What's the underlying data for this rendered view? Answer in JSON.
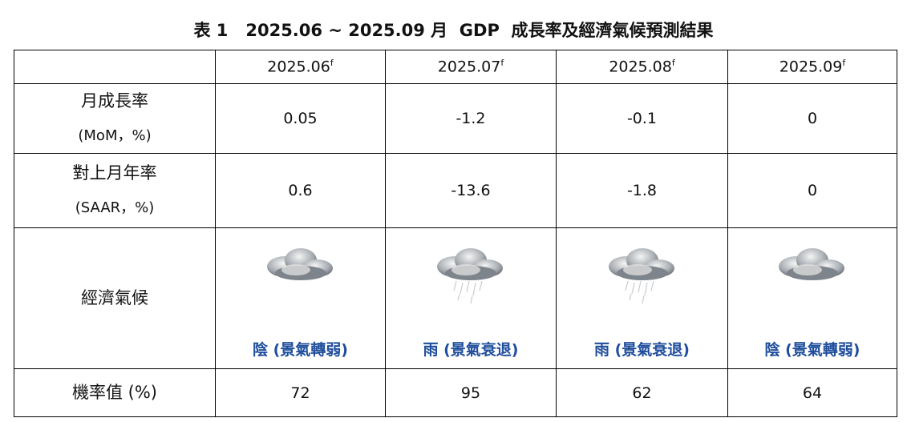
{
  "title": "表 1   2025.06 ~ 2025.09 月  GDP  成長率及經濟氣候預測結果",
  "table": {
    "columns": [
      {
        "text": "2025.06",
        "sup": "f"
      },
      {
        "text": "2025.07",
        "sup": "f"
      },
      {
        "text": "2025.08",
        "sup": "f"
      },
      {
        "text": "2025.09",
        "sup": "f"
      }
    ],
    "rows": [
      {
        "label": [
          "月成長率",
          "(MoM，%)"
        ],
        "cells": [
          0.05,
          -1.2,
          -0.1,
          0
        ]
      },
      {
        "label": [
          "對上月年率",
          "(SAAR，%)"
        ],
        "cells": [
          0.6,
          -13.6,
          -1.8,
          0
        ]
      },
      {
        "label": [
          "經濟氣候"
        ],
        "cells": [
          "陰 (景氣轉弱)",
          "雨 (景氣衰退)",
          "雨 (景氣衰退)",
          "陰 (景氣轉弱)"
        ]
      },
      {
        "label": [
          "機率值 (%)"
        ],
        "cells": [
          72,
          95,
          62,
          64
        ]
      }
    ]
  }
}
